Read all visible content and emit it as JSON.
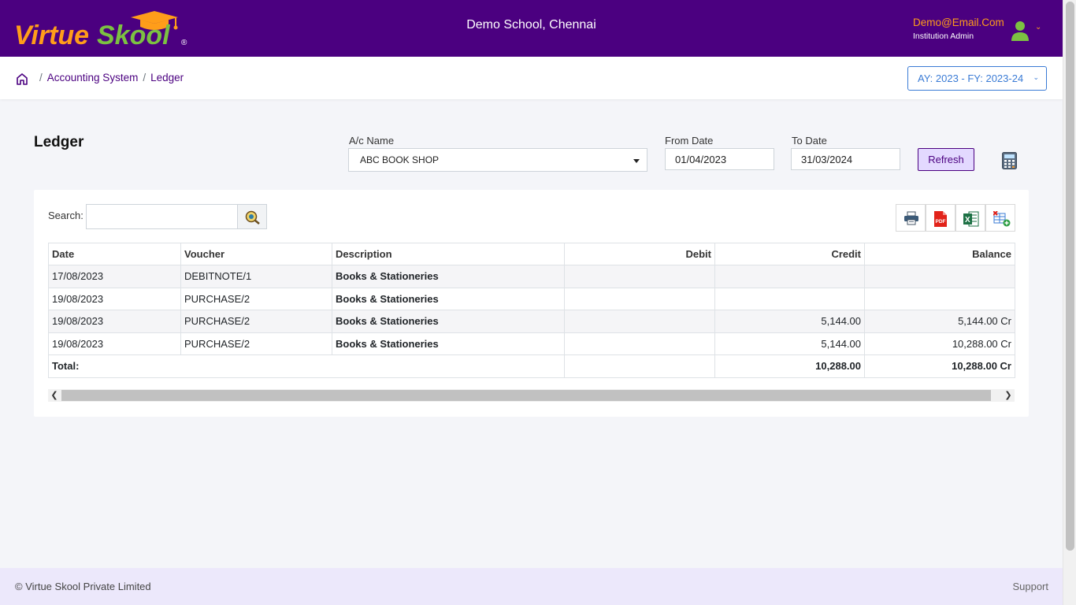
{
  "brand": {
    "name_part1": "Virtue",
    "name_part2": "Skool",
    "registered": "®",
    "color_primary": "#4b0080",
    "color_accent": "#ff9d1a",
    "color_green": "#7cc142"
  },
  "header": {
    "school_name": "Demo School, Chennai",
    "user_email": "Demo@Email.Com",
    "user_role": "Institution Admin",
    "user_menu_icon": "chevron-down-icon"
  },
  "breadcrumb": {
    "home_icon": "home-icon",
    "separator": "/",
    "items": [
      "Accounting System",
      "Ledger"
    ]
  },
  "academic_year": {
    "label": "AY: 2023 - FY: 2023-24",
    "icon": "chevron-down-icon"
  },
  "page": {
    "title": "Ledger"
  },
  "filters": {
    "ac_name_label": "A/c Name",
    "ac_name_value": "ABC BOOK SHOP",
    "from_date_label": "From Date",
    "from_date_value": "01/04/2023",
    "to_date_label": "To Date",
    "to_date_value": "31/03/2024",
    "refresh_label": "Refresh",
    "calculator_icon": "calculator-icon"
  },
  "search": {
    "label": "Search:",
    "value": "",
    "icon": "search-icon"
  },
  "exports": [
    "print-icon",
    "pdf-icon",
    "excel-icon",
    "column-settings-icon"
  ],
  "table": {
    "columns": [
      "Date",
      "Voucher",
      "Description",
      "Debit",
      "Credit",
      "Balance"
    ],
    "rows": [
      {
        "date": "17/08/2023",
        "voucher": "DEBITNOTE/1",
        "description": "Books & Stationeries",
        "debit": "",
        "credit": "",
        "balance": ""
      },
      {
        "date": "19/08/2023",
        "voucher": "PURCHASE/2",
        "description": "Books & Stationeries",
        "debit": "",
        "credit": "",
        "balance": ""
      },
      {
        "date": "19/08/2023",
        "voucher": "PURCHASE/2",
        "description": "Books & Stationeries",
        "debit": "",
        "credit": "5,144.00",
        "balance": "5,144.00 Cr"
      },
      {
        "date": "19/08/2023",
        "voucher": "PURCHASE/2",
        "description": "Books & Stationeries",
        "debit": "",
        "credit": "5,144.00",
        "balance": "10,288.00 Cr"
      }
    ],
    "total": {
      "label": "Total:",
      "debit": "",
      "credit": "10,288.00",
      "balance": "10,288.00 Cr"
    }
  },
  "footer": {
    "copyright": "© Virtue Skool Private Limited",
    "support": "Support"
  }
}
